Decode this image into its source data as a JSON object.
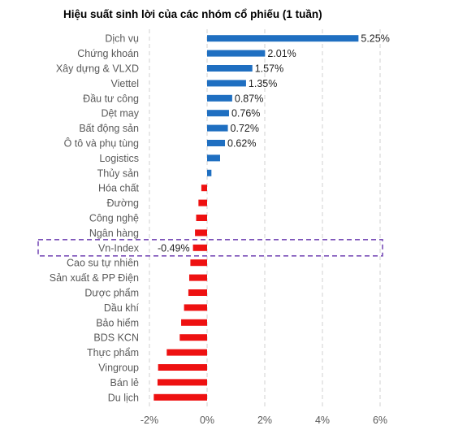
{
  "chart_data": {
    "type": "bar",
    "orientation": "horizontal",
    "title": "Hiệu suất sinh lời của các nhóm cổ phiếu (1 tuần)",
    "xlabel": "",
    "ylabel": "",
    "xlim": [
      -2,
      6
    ],
    "xticks": [
      -2,
      0,
      2,
      4,
      6
    ],
    "xtick_labels": [
      "-2%",
      "0%",
      "2%",
      "4%",
      "6%"
    ],
    "grid": "vertical dashed",
    "positive_color": "#1f6fc1",
    "negative_color": "#ee1111",
    "highlight_color": "#7a4fb8",
    "highlight_category": "Vn-Index",
    "categories": [
      "Dịch vụ",
      "Chứng khoán",
      "Xây dựng & VLXD",
      "Viettel",
      "Đầu tư công",
      "Dệt may",
      "Bất động sản",
      "Ô tô và phụ tùng",
      "Logistics",
      "Thủy sản",
      "Hóa chất",
      "Đường",
      "Công nghệ",
      "Ngân hàng",
      "Vn-Index",
      "Cao su tự nhiên",
      "Sản xuất & PP Điện",
      "Dược phẩm",
      "Dầu khí",
      "Bảo hiểm",
      "BDS KCN",
      "Thực phẩm",
      "Vingroup",
      "Bán lẻ",
      "Du lịch"
    ],
    "values": [
      5.25,
      2.01,
      1.57,
      1.35,
      0.87,
      0.76,
      0.72,
      0.62,
      0.45,
      0.15,
      -0.2,
      -0.3,
      -0.38,
      -0.42,
      -0.49,
      -0.58,
      -0.62,
      -0.65,
      -0.8,
      -0.9,
      -0.95,
      -1.4,
      -1.7,
      -1.72,
      -1.85
    ],
    "data_labels": [
      "5.25%",
      "2.01%",
      "1.57%",
      "1.35%",
      "0.87%",
      "0.76%",
      "0.72%",
      "0.62%",
      "",
      "",
      "",
      "",
      "",
      "",
      "-0.49%",
      "",
      "",
      "",
      "",
      "",
      "",
      "",
      "",
      "",
      ""
    ]
  }
}
